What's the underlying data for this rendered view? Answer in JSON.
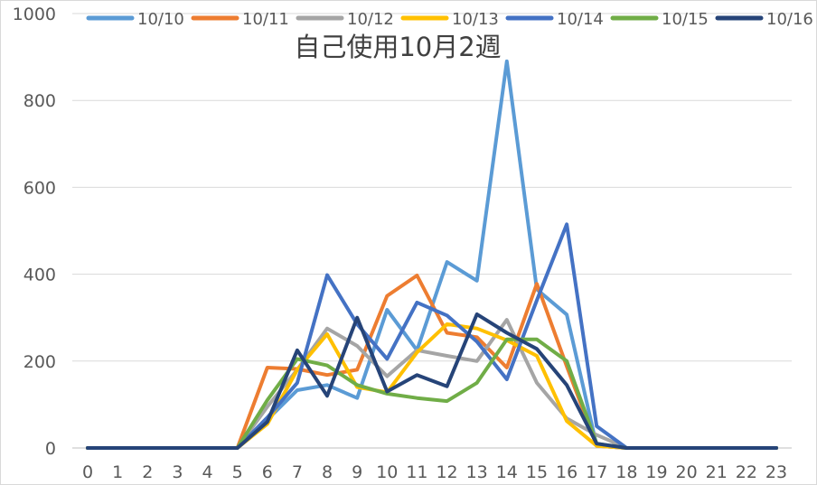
{
  "chart_data": {
    "type": "line",
    "title": "自己使用10月2週",
    "xlabel": "",
    "ylabel": "",
    "x": [
      0,
      1,
      2,
      3,
      4,
      5,
      6,
      7,
      8,
      9,
      10,
      11,
      12,
      13,
      14,
      15,
      16,
      17,
      18,
      19,
      20,
      21,
      22,
      23
    ],
    "xtick_labels": [
      "0",
      "1",
      "2",
      "3",
      "4",
      "5",
      "6",
      "7",
      "8",
      "9",
      "10",
      "11",
      "12",
      "13",
      "14",
      "15",
      "16",
      "17",
      "18",
      "19",
      "20",
      "21",
      "22",
      "23"
    ],
    "ylim": [
      0,
      1000
    ],
    "yticks": [
      0,
      200,
      400,
      600,
      800,
      1000
    ],
    "ytick_labels": [
      "0",
      "200",
      "400",
      "600",
      "800",
      "1000"
    ],
    "grid": true,
    "legend_position": "top",
    "series": [
      {
        "name": "10/10",
        "color": "#5B9BD5",
        "values": [
          0,
          0,
          0,
          0,
          0,
          0,
          65,
          133,
          145,
          115,
          318,
          225,
          428,
          385,
          890,
          365,
          307,
          5,
          0,
          0,
          0,
          0,
          0,
          0
        ]
      },
      {
        "name": "10/11",
        "color": "#ED7D31",
        "values": [
          0,
          0,
          0,
          0,
          0,
          0,
          185,
          182,
          168,
          180,
          350,
          397,
          265,
          255,
          185,
          378,
          188,
          5,
          0,
          0,
          0,
          0,
          0,
          0
        ]
      },
      {
        "name": "10/12",
        "color": "#A5A5A5",
        "values": [
          0,
          0,
          0,
          0,
          0,
          0,
          95,
          180,
          275,
          235,
          165,
          225,
          212,
          200,
          295,
          150,
          68,
          30,
          0,
          0,
          0,
          0,
          0,
          0
        ]
      },
      {
        "name": "10/13",
        "color": "#FFC000",
        "values": [
          0,
          0,
          0,
          0,
          0,
          0,
          55,
          180,
          262,
          140,
          128,
          220,
          285,
          275,
          248,
          212,
          62,
          5,
          0,
          0,
          0,
          0,
          0,
          0
        ]
      },
      {
        "name": "10/14",
        "color": "#4472C4",
        "values": [
          0,
          0,
          0,
          0,
          0,
          0,
          70,
          150,
          398,
          285,
          205,
          335,
          305,
          245,
          158,
          340,
          515,
          50,
          0,
          0,
          0,
          0,
          0,
          0
        ]
      },
      {
        "name": "10/15",
        "color": "#70AD47",
        "values": [
          0,
          0,
          0,
          0,
          0,
          0,
          110,
          205,
          190,
          145,
          125,
          115,
          108,
          150,
          250,
          250,
          200,
          10,
          0,
          0,
          0,
          0,
          0,
          0
        ]
      },
      {
        "name": "10/16",
        "color": "#264478",
        "values": [
          0,
          0,
          0,
          0,
          0,
          0,
          60,
          225,
          120,
          300,
          130,
          168,
          142,
          308,
          265,
          228,
          145,
          10,
          0,
          0,
          0,
          0,
          0,
          0
        ]
      }
    ]
  }
}
